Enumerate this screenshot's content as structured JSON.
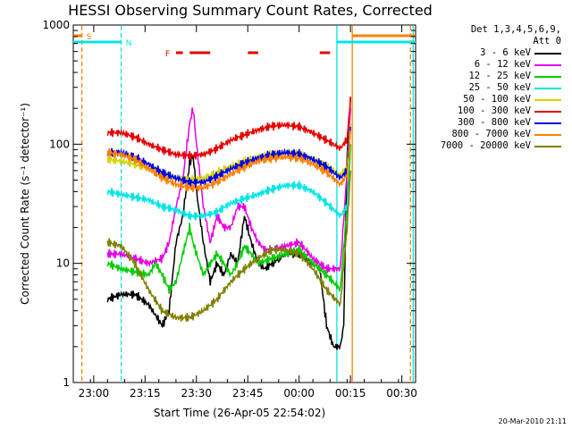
{
  "chart_data": {
    "type": "line",
    "title": "HESSI Observing Summary Count Rates, Corrected",
    "xlabel": "Start Time (26-Apr-05 22:54:02)",
    "ylabel": "Corrected Count Rate (s⁻¹ detector⁻¹)",
    "yscale": "log",
    "ylim": [
      1,
      1000
    ],
    "xlim_minutes_after_start": [
      0,
      100
    ],
    "x_ticks": [
      {
        "label": "23:00",
        "t": 5.97
      },
      {
        "label": "23:15",
        "t": 20.97
      },
      {
        "label": "23:30",
        "t": 35.97
      },
      {
        "label": "23:45",
        "t": 50.97
      },
      {
        "label": "00:00",
        "t": 65.97
      },
      {
        "label": "00:15",
        "t": 80.97
      },
      {
        "label": "00:30",
        "t": 95.97
      }
    ],
    "y_ticks": [
      {
        "label": "1",
        "v": 1
      },
      {
        "label": "10",
        "v": 10
      },
      {
        "label": "100",
        "v": 100
      },
      {
        "label": "1000",
        "v": 1000
      }
    ],
    "legend_header": [
      "Det 1,3,4,5,6,9,",
      "Att 0"
    ],
    "legend_position": "right",
    "series": [
      {
        "name": "3 - 6 keV",
        "color": "#000000",
        "points": [
          [
            10,
            5
          ],
          [
            14,
            5.5
          ],
          [
            18,
            5.5
          ],
          [
            22,
            4.5
          ],
          [
            26,
            3
          ],
          [
            28,
            4
          ],
          [
            30,
            15
          ],
          [
            32,
            25
          ],
          [
            34,
            70
          ],
          [
            35,
            80
          ],
          [
            36,
            40
          ],
          [
            38,
            15
          ],
          [
            40,
            7
          ],
          [
            42,
            10
          ],
          [
            44,
            8
          ],
          [
            46,
            12
          ],
          [
            48,
            10
          ],
          [
            50,
            25
          ],
          [
            52,
            15
          ],
          [
            54,
            10
          ],
          [
            56,
            9
          ],
          [
            58,
            10
          ],
          [
            62,
            12
          ],
          [
            66,
            12
          ],
          [
            70,
            10
          ],
          [
            72,
            9
          ],
          [
            74,
            3
          ],
          [
            76,
            2
          ],
          [
            78,
            2
          ],
          [
            79,
            3
          ],
          [
            80,
            80
          ],
          [
            81,
            250
          ]
        ]
      },
      {
        "name": "6 - 12 keV",
        "color": "#e600e6",
        "points": [
          [
            10,
            12
          ],
          [
            14,
            12
          ],
          [
            18,
            11
          ],
          [
            22,
            10
          ],
          [
            26,
            11
          ],
          [
            28,
            15
          ],
          [
            30,
            30
          ],
          [
            32,
            50
          ],
          [
            34,
            150
          ],
          [
            35,
            200
          ],
          [
            36,
            100
          ],
          [
            38,
            30
          ],
          [
            40,
            15
          ],
          [
            42,
            25
          ],
          [
            44,
            20
          ],
          [
            46,
            20
          ],
          [
            48,
            30
          ],
          [
            50,
            30
          ],
          [
            52,
            20
          ],
          [
            54,
            15
          ],
          [
            56,
            13
          ],
          [
            58,
            13
          ],
          [
            62,
            14
          ],
          [
            66,
            15
          ],
          [
            70,
            11
          ],
          [
            74,
            9
          ],
          [
            78,
            9
          ],
          [
            80,
            60
          ],
          [
            81,
            200
          ]
        ]
      },
      {
        "name": "12 - 25 keV",
        "color": "#00cc00",
        "points": [
          [
            10,
            10
          ],
          [
            14,
            9
          ],
          [
            18,
            8.5
          ],
          [
            22,
            8
          ],
          [
            24,
            10
          ],
          [
            26,
            8
          ],
          [
            28,
            6
          ],
          [
            30,
            7
          ],
          [
            32,
            12
          ],
          [
            34,
            20
          ],
          [
            35,
            15
          ],
          [
            36,
            12
          ],
          [
            38,
            8
          ],
          [
            40,
            10
          ],
          [
            42,
            12
          ],
          [
            44,
            10
          ],
          [
            46,
            8
          ],
          [
            48,
            10
          ],
          [
            50,
            14
          ],
          [
            52,
            12
          ],
          [
            54,
            10
          ],
          [
            58,
            11
          ],
          [
            62,
            12
          ],
          [
            66,
            13
          ],
          [
            70,
            10
          ],
          [
            74,
            8
          ],
          [
            78,
            6
          ],
          [
            80,
            30
          ],
          [
            81,
            100
          ]
        ]
      },
      {
        "name": "25 - 50 keV",
        "color": "#00e5e5",
        "points": [
          [
            10,
            40
          ],
          [
            14,
            38
          ],
          [
            18,
            36
          ],
          [
            22,
            34
          ],
          [
            26,
            30
          ],
          [
            30,
            28
          ],
          [
            34,
            25
          ],
          [
            38,
            25
          ],
          [
            42,
            27
          ],
          [
            46,
            32
          ],
          [
            50,
            35
          ],
          [
            54,
            38
          ],
          [
            58,
            42
          ],
          [
            62,
            45
          ],
          [
            66,
            45
          ],
          [
            70,
            40
          ],
          [
            74,
            32
          ],
          [
            78,
            25
          ],
          [
            80,
            30
          ],
          [
            81,
            60
          ]
        ]
      },
      {
        "name": "50 - 100 keV",
        "color": "#d4d400",
        "points": [
          [
            10,
            75
          ],
          [
            14,
            72
          ],
          [
            18,
            68
          ],
          [
            22,
            62
          ],
          [
            26,
            56
          ],
          [
            30,
            52
          ],
          [
            34,
            50
          ],
          [
            38,
            52
          ],
          [
            42,
            58
          ],
          [
            46,
            65
          ],
          [
            50,
            72
          ],
          [
            54,
            78
          ],
          [
            58,
            82
          ],
          [
            62,
            85
          ],
          [
            66,
            82
          ],
          [
            70,
            75
          ],
          [
            74,
            65
          ],
          [
            78,
            55
          ],
          [
            80,
            65
          ],
          [
            81,
            150
          ]
        ]
      },
      {
        "name": "100 - 300 keV",
        "color": "#e60000",
        "points": [
          [
            10,
            125
          ],
          [
            14,
            125
          ],
          [
            18,
            115
          ],
          [
            22,
            100
          ],
          [
            26,
            90
          ],
          [
            30,
            82
          ],
          [
            34,
            80
          ],
          [
            38,
            82
          ],
          [
            42,
            92
          ],
          [
            46,
            108
          ],
          [
            50,
            120
          ],
          [
            54,
            132
          ],
          [
            58,
            142
          ],
          [
            62,
            145
          ],
          [
            66,
            140
          ],
          [
            70,
            125
          ],
          [
            74,
            108
          ],
          [
            78,
            92
          ],
          [
            80,
            110
          ],
          [
            81,
            250
          ]
        ]
      },
      {
        "name": "300 - 800 keV",
        "color": "#0000e6",
        "points": [
          [
            10,
            85
          ],
          [
            14,
            85
          ],
          [
            18,
            78
          ],
          [
            22,
            68
          ],
          [
            26,
            58
          ],
          [
            30,
            52
          ],
          [
            34,
            48
          ],
          [
            38,
            48
          ],
          [
            42,
            54
          ],
          [
            46,
            62
          ],
          [
            50,
            70
          ],
          [
            54,
            77
          ],
          [
            58,
            82
          ],
          [
            62,
            85
          ],
          [
            66,
            83
          ],
          [
            70,
            75
          ],
          [
            74,
            65
          ],
          [
            78,
            52
          ],
          [
            80,
            60
          ],
          [
            81,
            140
          ]
        ]
      },
      {
        "name": "800 - 7000 keV",
        "color": "#ff8000",
        "points": [
          [
            10,
            85
          ],
          [
            14,
            82
          ],
          [
            18,
            75
          ],
          [
            22,
            62
          ],
          [
            26,
            52
          ],
          [
            30,
            46
          ],
          [
            34,
            43
          ],
          [
            38,
            43
          ],
          [
            42,
            48
          ],
          [
            46,
            56
          ],
          [
            50,
            64
          ],
          [
            54,
            72
          ],
          [
            58,
            76
          ],
          [
            62,
            78
          ],
          [
            66,
            76
          ],
          [
            70,
            68
          ],
          [
            74,
            58
          ],
          [
            78,
            46
          ],
          [
            80,
            55
          ],
          [
            81,
            130
          ]
        ]
      },
      {
        "name": "7000 - 20000 keV",
        "color": "#808000",
        "points": [
          [
            10,
            15
          ],
          [
            14,
            14
          ],
          [
            18,
            10
          ],
          [
            22,
            6
          ],
          [
            26,
            4
          ],
          [
            30,
            3.5
          ],
          [
            34,
            3.5
          ],
          [
            38,
            4
          ],
          [
            42,
            5
          ],
          [
            46,
            7
          ],
          [
            50,
            9
          ],
          [
            54,
            11
          ],
          [
            58,
            13
          ],
          [
            62,
            13
          ],
          [
            66,
            12
          ],
          [
            70,
            9
          ],
          [
            74,
            6
          ],
          [
            78,
            4.5
          ],
          [
            80,
            20
          ],
          [
            81,
            60
          ]
        ]
      }
    ],
    "flag_bars": [
      {
        "label": "S",
        "color": "#ff8000",
        "row": "upper",
        "segments": [
          [
            0,
            2.5
          ],
          [
            81.5,
            100
          ]
        ]
      },
      {
        "label": "N",
        "color": "#00e5e5",
        "row": "lower",
        "segments": [
          [
            0,
            14
          ],
          [
            77,
            100
          ]
        ]
      },
      {
        "label": "F",
        "color": "#e60000",
        "row": "mid",
        "segments": [
          [
            30,
            32
          ],
          [
            34,
            40
          ],
          [
            51,
            54
          ],
          [
            72,
            75
          ]
        ]
      }
    ],
    "vertical_lines": [
      {
        "t": 2.5,
        "color": "#ff8000",
        "style": "dashed"
      },
      {
        "t": 14,
        "color": "#00e5e5",
        "style": "dashed"
      },
      {
        "t": 77,
        "color": "#00e5e5",
        "style": "solid"
      },
      {
        "t": 81.5,
        "color": "#ff8000",
        "style": "solid"
      },
      {
        "t": 98.5,
        "color": "#ff8000",
        "style": "dashed"
      },
      {
        "t": 99.3,
        "color": "#00e5e5",
        "style": "solid"
      }
    ],
    "timestamp": "20-Mar-2010 21:11"
  }
}
